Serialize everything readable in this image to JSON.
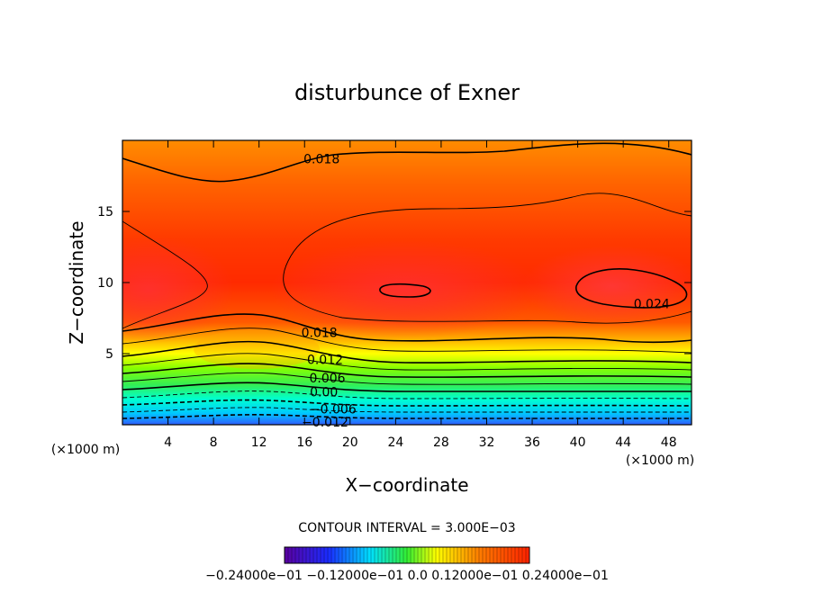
{
  "chart_data": {
    "type": "heatmap",
    "title": "disturbunce of Exner",
    "xlabel": "X−coordinate",
    "ylabel": "Z−coordinate",
    "x_unit": "(×1000 m)",
    "y_unit": "(×1000 m)",
    "xlim": [
      0,
      50
    ],
    "ylim": [
      0,
      20
    ],
    "x_ticks": [
      4,
      8,
      12,
      16,
      20,
      24,
      28,
      32,
      36,
      40,
      44,
      48
    ],
    "y_ticks": [
      5,
      10,
      15
    ],
    "contour_interval_text": "CONTOUR INTERVAL = 3.000E−03",
    "colorbar_label_text": "−0.24000e−01 −0.12000e−01 0.0 0.12000e−01 0.24000e−01",
    "contour_labels": [
      {
        "text": "0.018",
        "x": 17.5,
        "z": 18.7
      },
      {
        "text": "0.024",
        "x": 46.5,
        "z": 8.5
      },
      {
        "text": "0.018",
        "x": 17.3,
        "z": 6.5
      },
      {
        "text": "0.012",
        "x": 17.8,
        "z": 4.6
      },
      {
        "text": "0.006",
        "x": 18.0,
        "z": 3.3
      },
      {
        "text": "0.00",
        "x": 17.7,
        "z": 2.3
      },
      {
        "text": "−0.006",
        "x": 18.5,
        "z": 1.1
      },
      {
        "text": "−0.012",
        "x": 17.8,
        "z": 0.2
      }
    ],
    "field_levels": {
      "surface": -0.018,
      "z3": 0.0,
      "z5": 0.012,
      "z7": 0.018,
      "z10_center": 0.024,
      "top": 0.015
    },
    "colors": {
      "deep_blue": "#2f5cff",
      "cyan": "#00e5ff",
      "green": "#33ee33",
      "yellow": "#ffff00",
      "orange": "#ff8800",
      "red": "#ff2200"
    }
  }
}
